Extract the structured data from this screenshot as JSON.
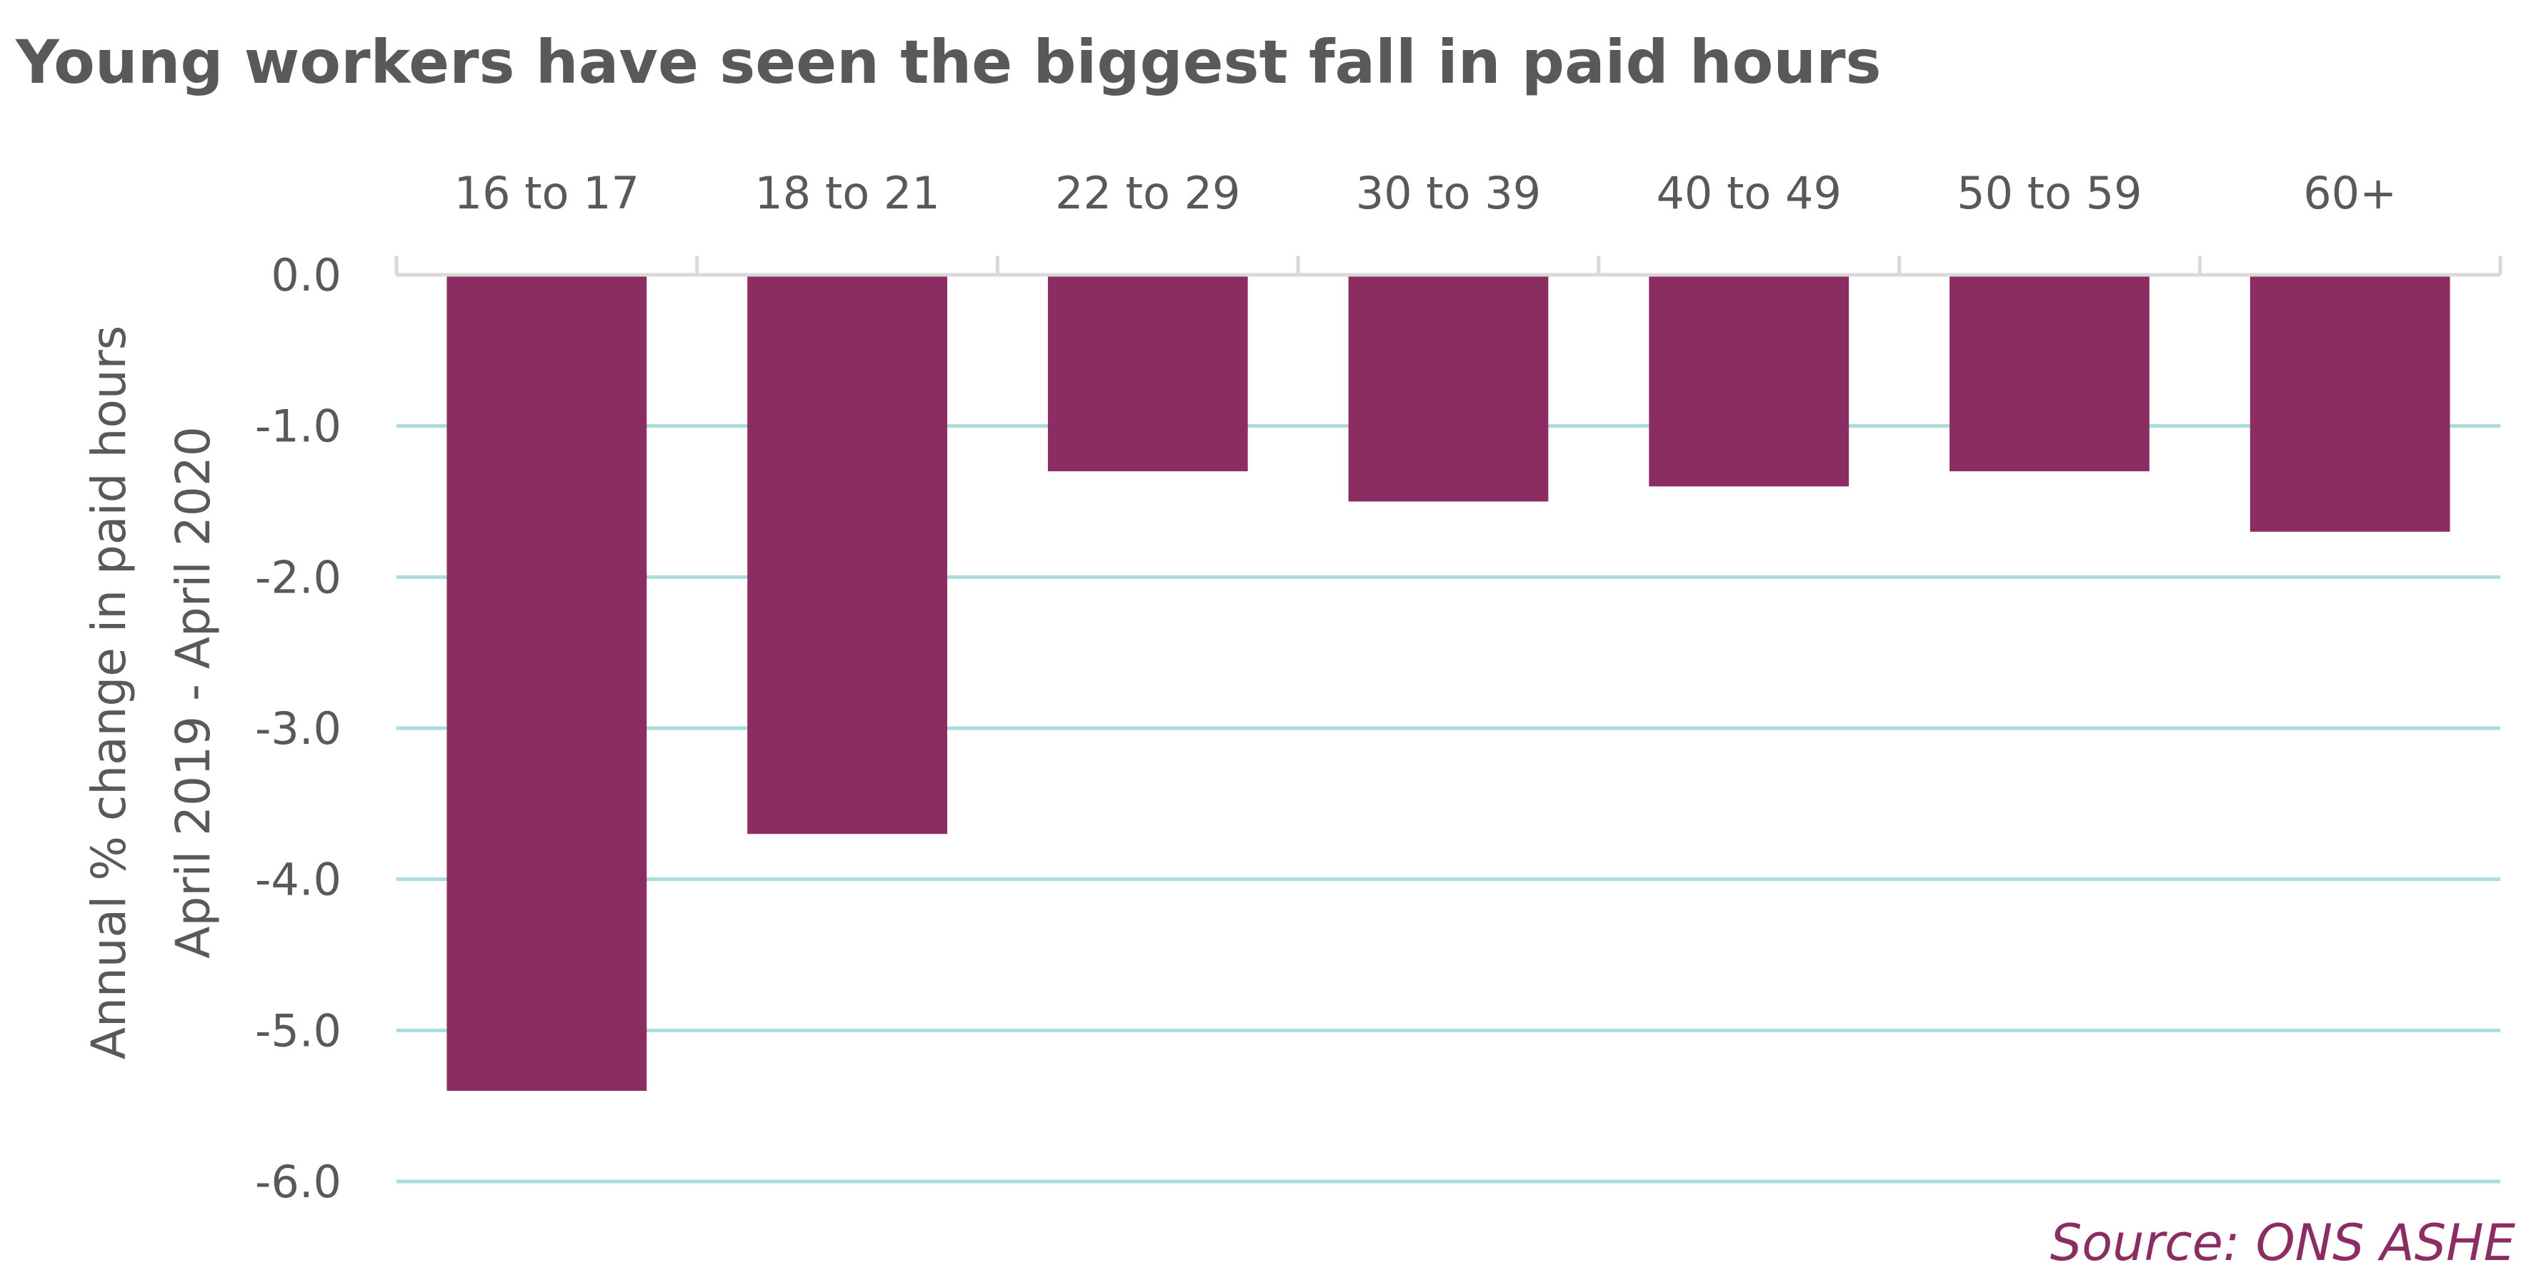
{
  "title": "Young workers have seen the biggest fall in paid hours",
  "source": "Source: ONS ASHE",
  "colors": {
    "bar": "#8B2C62",
    "grid": "#A9DCDC",
    "text": "#595959"
  },
  "chart_data": {
    "type": "bar",
    "title": "Young workers have seen the biggest fall in paid hours",
    "categories": [
      "16 to 17",
      "18 to 21",
      "22 to 29",
      "30 to 39",
      "40 to 49",
      "50 to 59",
      "60+"
    ],
    "values": [
      -5.4,
      -3.7,
      -1.3,
      -1.5,
      -1.4,
      -1.3,
      -1.7
    ],
    "xlabel": "",
    "ylabel_lines": [
      "Annual % change in paid hours",
      "April 2019 - April 2020"
    ],
    "ylim": [
      -6.0,
      0.0
    ],
    "yticks": [
      "0.0",
      "-1.0",
      "-2.0",
      "-3.0",
      "-4.0",
      "-5.0",
      "-6.0"
    ],
    "x_axis_position": "top",
    "grid": true,
    "legend": "none"
  }
}
